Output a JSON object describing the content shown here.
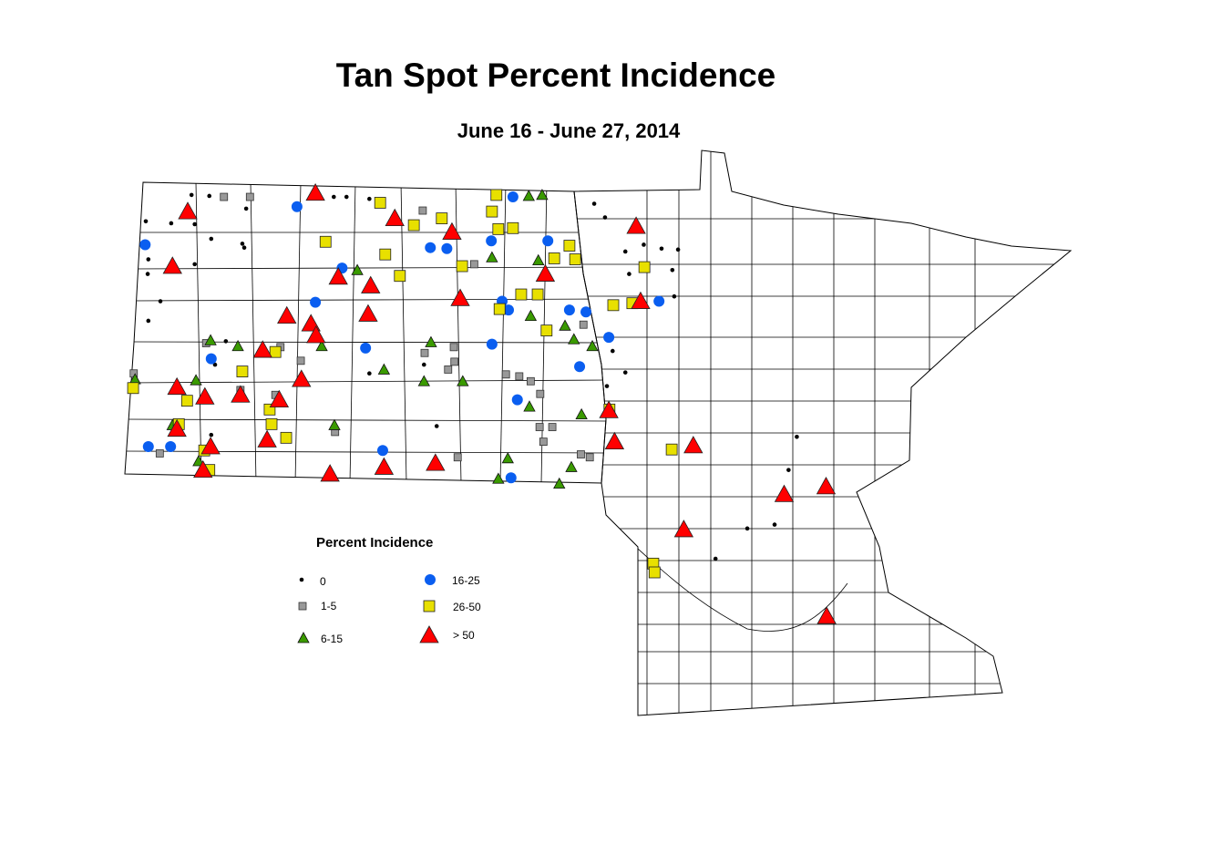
{
  "title": "Tan Spot Percent Incidence",
  "subtitle": "June 16 - June 27, 2014",
  "legend": {
    "title": "Percent Incidence",
    "items": [
      {
        "label": "0",
        "symbol": "small-dot",
        "color": "#000000"
      },
      {
        "label": "1-5",
        "symbol": "square",
        "color": "#999999"
      },
      {
        "label": "6-15",
        "symbol": "triangle",
        "color": "#3a9a00"
      },
      {
        "label": "16-25",
        "symbol": "circle",
        "color": "#0a5ef0"
      },
      {
        "label": "26-50",
        "symbol": "square",
        "color": "#e8e000"
      },
      {
        "label": "> 50",
        "symbol": "triangle",
        "color": "#ff0000"
      }
    ]
  },
  "map": {
    "region": "North Dakota and Minnesota counties",
    "sites_lon_lat_category": {
      "> 50": [
        [
          -101.05,
          48.89
        ],
        [
          -99.8,
          48.63
        ],
        [
          -98.9,
          48.49
        ],
        [
          -100.69,
          48.03
        ],
        [
          -100.18,
          47.94
        ],
        [
          -98.77,
          47.81
        ],
        [
          -97.43,
          48.06
        ],
        [
          -101.5,
          47.63
        ],
        [
          -101.12,
          47.55
        ],
        [
          -101.04,
          47.43
        ],
        [
          -100.22,
          47.65
        ],
        [
          -101.88,
          47.28
        ],
        [
          -101.27,
          46.98
        ],
        [
          -101.62,
          46.77
        ],
        [
          -103.23,
          46.9
        ],
        [
          -102.79,
          46.8
        ],
        [
          -102.23,
          46.82
        ],
        [
          -103.3,
          48.14
        ],
        [
          -103.06,
          48.7
        ],
        [
          -103.23,
          46.47
        ],
        [
          -102.7,
          46.29
        ],
        [
          -101.81,
          46.36
        ],
        [
          -100.82,
          46.01
        ],
        [
          -99.97,
          46.08
        ],
        [
          -99.16,
          46.12
        ],
        [
          -96.43,
          46.66
        ],
        [
          -96.34,
          46.34
        ],
        [
          -95.93,
          47.78
        ],
        [
          -96.0,
          48.55
        ],
        [
          -95.25,
          45.44
        ],
        [
          -93.67,
          45.8
        ],
        [
          -93.01,
          45.88
        ],
        [
          -93.0,
          44.55
        ],
        [
          -95.1,
          46.3
        ],
        [
          -102.82,
          46.05
        ]
      ],
      "26-50": [
        [
          -100.03,
          48.79
        ],
        [
          -99.5,
          48.56
        ],
        [
          -99.06,
          48.63
        ],
        [
          -98.2,
          48.87
        ],
        [
          -98.27,
          48.7
        ],
        [
          -98.17,
          48.52
        ],
        [
          -97.94,
          48.53
        ],
        [
          -100.89,
          48.39
        ],
        [
          -99.95,
          48.26
        ],
        [
          -99.72,
          48.04
        ],
        [
          -98.74,
          48.14
        ],
        [
          -97.29,
          48.22
        ],
        [
          -97.05,
          48.35
        ],
        [
          -96.96,
          48.21
        ],
        [
          -97.81,
          47.85
        ],
        [
          -97.55,
          47.85
        ],
        [
          -98.15,
          47.7
        ],
        [
          -97.41,
          47.48
        ],
        [
          -96.36,
          47.74
        ],
        [
          -96.06,
          47.76
        ],
        [
          -95.87,
          48.13
        ],
        [
          -101.68,
          47.26
        ],
        [
          -102.2,
          47.06
        ],
        [
          -103.07,
          46.76
        ],
        [
          -101.77,
          46.67
        ],
        [
          -101.74,
          46.52
        ],
        [
          -101.51,
          46.38
        ],
        [
          -103.2,
          46.52
        ],
        [
          -102.8,
          46.25
        ],
        [
          -102.72,
          46.05
        ],
        [
          -103.92,
          46.89
        ],
        [
          -95.44,
          46.26
        ],
        [
          -95.73,
          45.09
        ],
        [
          -95.71,
          45.0
        ],
        [
          -96.42,
          46.67
        ]
      ],
      "16-25": [
        [
          -101.34,
          48.75
        ],
        [
          -97.94,
          48.85
        ],
        [
          -99.24,
          48.33
        ],
        [
          -98.98,
          48.32
        ],
        [
          -98.28,
          48.4
        ],
        [
          -97.39,
          48.4
        ],
        [
          -100.63,
          48.12
        ],
        [
          -101.05,
          47.77
        ],
        [
          -98.11,
          47.78
        ],
        [
          -98.01,
          47.69
        ],
        [
          -97.05,
          47.69
        ],
        [
          -96.79,
          47.67
        ],
        [
          -100.26,
          47.3
        ],
        [
          -98.27,
          47.34
        ],
        [
          -96.89,
          47.11
        ],
        [
          -96.43,
          47.41
        ],
        [
          -95.64,
          47.78
        ],
        [
          -102.69,
          47.19
        ],
        [
          -99.99,
          46.25
        ],
        [
          -97.97,
          45.97
        ],
        [
          -97.87,
          46.77
        ],
        [
          -103.68,
          46.29
        ],
        [
          -103.33,
          46.29
        ],
        [
          -103.73,
          48.36
        ]
      ],
      "6-15": [
        [
          -97.69,
          48.86
        ],
        [
          -97.48,
          48.87
        ],
        [
          -100.39,
          48.1
        ],
        [
          -98.27,
          48.23
        ],
        [
          -97.54,
          48.2
        ],
        [
          -97.12,
          47.53
        ],
        [
          -96.98,
          47.39
        ],
        [
          -96.69,
          47.32
        ],
        [
          -99.23,
          47.36
        ],
        [
          -98.73,
          46.96
        ],
        [
          -99.34,
          46.96
        ],
        [
          -99.97,
          47.08
        ],
        [
          -100.95,
          47.32
        ],
        [
          -102.27,
          47.32
        ],
        [
          -102.7,
          47.38
        ],
        [
          -102.93,
          46.97
        ],
        [
          -103.89,
          46.98
        ],
        [
          -103.3,
          46.51
        ],
        [
          -102.89,
          46.14
        ],
        [
          -100.75,
          46.51
        ],
        [
          -98.02,
          46.17
        ],
        [
          -97.02,
          46.08
        ],
        [
          -97.21,
          45.91
        ],
        [
          -98.17,
          45.96
        ],
        [
          -97.68,
          46.7
        ],
        [
          -96.86,
          46.62
        ],
        [
          -97.66,
          47.63
        ]
      ],
      "1-5": [
        [
          -102.49,
          48.85
        ],
        [
          -102.08,
          48.85
        ],
        [
          -99.36,
          48.71
        ],
        [
          -98.55,
          48.16
        ],
        [
          -99.33,
          47.25
        ],
        [
          -98.87,
          47.31
        ],
        [
          -98.96,
          47.08
        ],
        [
          -98.86,
          47.16
        ],
        [
          -98.05,
          47.03
        ],
        [
          -97.84,
          47.01
        ],
        [
          -97.66,
          46.96
        ],
        [
          -97.51,
          46.83
        ],
        [
          -96.83,
          47.54
        ],
        [
          -97.52,
          46.49
        ],
        [
          -97.32,
          46.49
        ],
        [
          -97.46,
          46.34
        ],
        [
          -101.68,
          46.82
        ],
        [
          -101.28,
          47.17
        ],
        [
          -101.6,
          47.31
        ],
        [
          -102.77,
          47.35
        ],
        [
          -102.23,
          46.87
        ],
        [
          -103.91,
          47.04
        ],
        [
          -103.5,
          46.22
        ],
        [
          -100.74,
          46.44
        ],
        [
          -96.87,
          46.21
        ],
        [
          -96.73,
          46.18
        ],
        [
          -98.81,
          46.18
        ]
      ],
      "0": [
        [
          -103.72,
          48.6
        ],
        [
          -103.32,
          48.58
        ],
        [
          -102.95,
          48.57
        ],
        [
          -102.72,
          48.86
        ],
        [
          -103.0,
          48.87
        ],
        [
          -102.2,
          48.37
        ],
        [
          -102.17,
          48.33
        ],
        [
          -103.68,
          48.21
        ],
        [
          -103.69,
          48.06
        ],
        [
          -103.49,
          47.78
        ],
        [
          -103.68,
          47.58
        ],
        [
          -102.69,
          48.42
        ],
        [
          -102.95,
          48.16
        ],
        [
          -102.46,
          47.37
        ],
        [
          -102.63,
          47.13
        ],
        [
          -100.2,
          47.04
        ],
        [
          -99.34,
          47.13
        ],
        [
          -99.14,
          46.5
        ],
        [
          -98.27,
          47.35
        ],
        [
          -96.66,
          48.78
        ],
        [
          -96.49,
          48.64
        ],
        [
          -96.17,
          48.29
        ],
        [
          -95.88,
          48.36
        ],
        [
          -95.6,
          48.32
        ],
        [
          -95.34,
          48.31
        ],
        [
          -95.43,
          48.1
        ],
        [
          -96.11,
          48.06
        ],
        [
          -95.4,
          47.83
        ],
        [
          -96.37,
          47.27
        ],
        [
          -96.17,
          47.05
        ],
        [
          -96.46,
          46.91
        ],
        [
          -93.47,
          46.39
        ],
        [
          -93.6,
          46.05
        ],
        [
          -93.82,
          45.49
        ],
        [
          -94.25,
          45.45
        ],
        [
          -94.75,
          45.14
        ],
        [
          -102.69,
          46.41
        ],
        [
          -100.76,
          48.85
        ],
        [
          -100.56,
          48.85
        ],
        [
          -102.14,
          48.73
        ],
        [
          -100.2,
          48.83
        ]
      ]
    }
  }
}
